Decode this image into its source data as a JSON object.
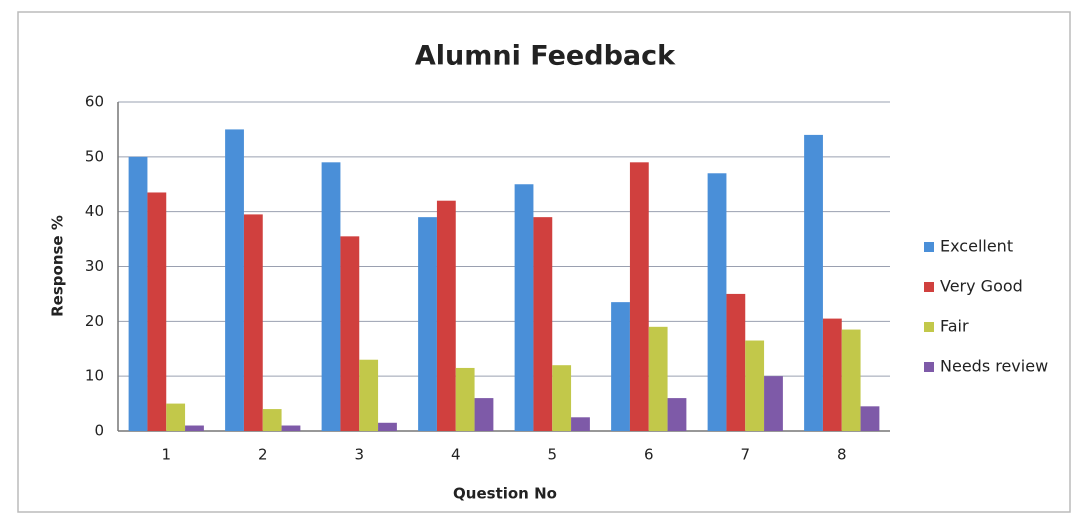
{
  "chart_data": {
    "type": "bar",
    "title": "Alumni Feedback",
    "x_label": "Question No",
    "y_label": "Response %",
    "categories": [
      "1",
      "2",
      "3",
      "4",
      "5",
      "6",
      "7",
      "8"
    ],
    "series": [
      {
        "name": "Excellent",
        "color": "#4a8fd8",
        "values": [
          50,
          55,
          49,
          39,
          45,
          23.5,
          47,
          54
        ]
      },
      {
        "name": "Very Good",
        "color": "#d0403e",
        "values": [
          43.5,
          39.5,
          35.5,
          42,
          39,
          49,
          25,
          20.5
        ]
      },
      {
        "name": "Fair",
        "color": "#c2c84a",
        "values": [
          5,
          4,
          13,
          11.5,
          12,
          19,
          16.5,
          18.5
        ]
      },
      {
        "name": "Needs review",
        "color": "#7e5aa8",
        "values": [
          1,
          1,
          1.5,
          6,
          2.5,
          6,
          10,
          4.5
        ]
      }
    ],
    "ylim": [
      0,
      60
    ],
    "yticks": [
      0,
      10,
      20,
      30,
      40,
      50,
      60
    ],
    "grid": true,
    "legend": "right"
  }
}
